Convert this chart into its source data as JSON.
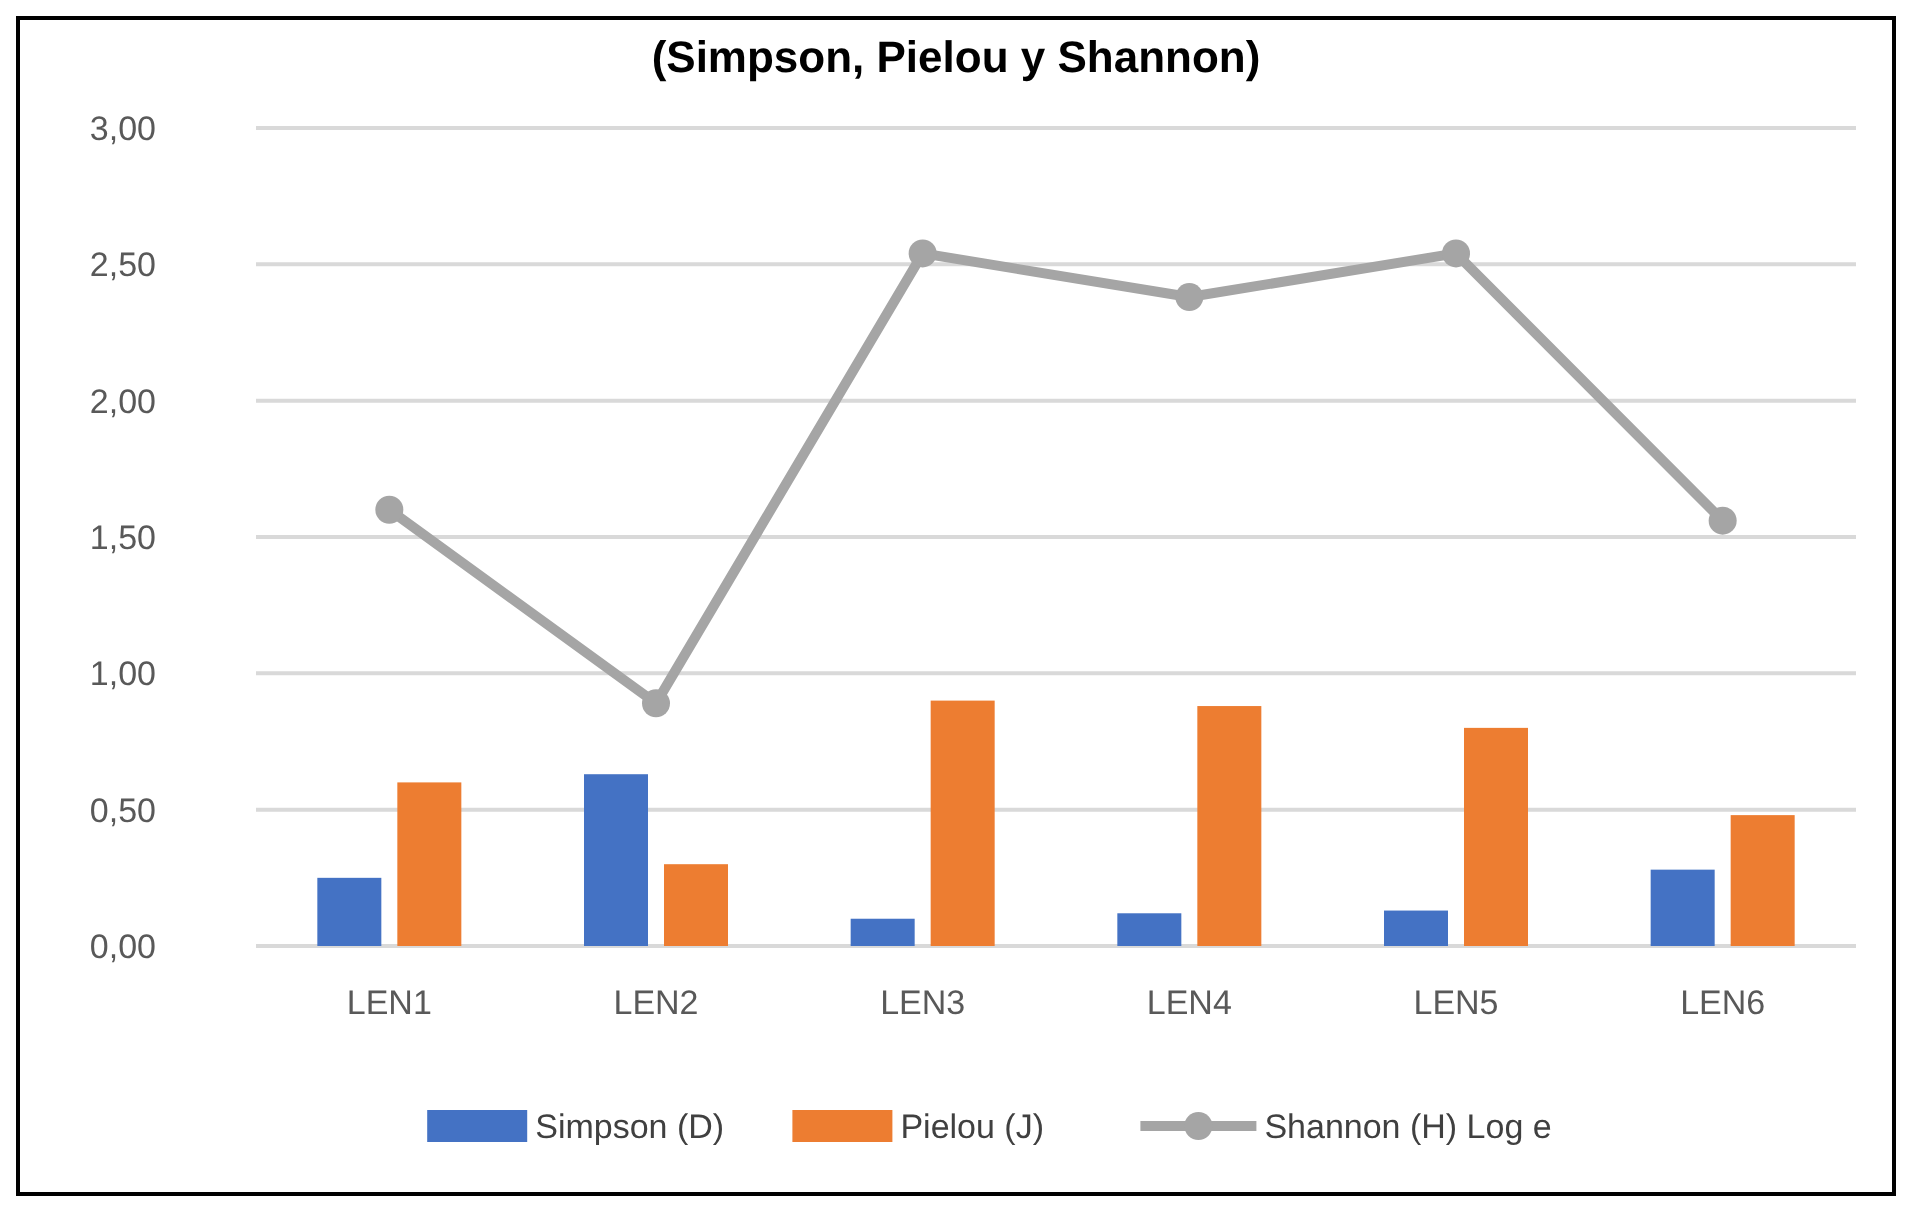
{
  "chart_data": {
    "type": "bar",
    "title": "(Simpson, Pielou y Shannon)",
    "categories": [
      "LEN1",
      "LEN2",
      "LEN3",
      "LEN4",
      "LEN5",
      "LEN6"
    ],
    "series": [
      {
        "name": "Simpson (D)",
        "color": "#4472c4",
        "values": [
          0.25,
          0.63,
          0.1,
          0.12,
          0.13,
          0.28
        ]
      },
      {
        "name": "Pielou (J)",
        "color": "#ed7d31",
        "values": [
          0.6,
          0.3,
          0.9,
          0.88,
          0.8,
          0.48
        ]
      },
      {
        "name": "Shannon (H) Log e",
        "type": "line",
        "color": "#a5a5a5",
        "marker": "circle",
        "values": [
          1.6,
          0.89,
          2.54,
          2.38,
          2.54,
          1.56
        ]
      }
    ],
    "ylim": [
      0,
      3
    ],
    "yticks": [
      {
        "value": 0,
        "label": "0,00"
      },
      {
        "value": 0.5,
        "label": "0,50"
      },
      {
        "value": 1,
        "label": "1,00"
      },
      {
        "value": 1.5,
        "label": "1,50"
      },
      {
        "value": 2,
        "label": "2,00"
      },
      {
        "value": 2.5,
        "label": "2,50"
      },
      {
        "value": 3,
        "label": "3,00"
      }
    ],
    "grid": "y",
    "legend": "bottom"
  }
}
